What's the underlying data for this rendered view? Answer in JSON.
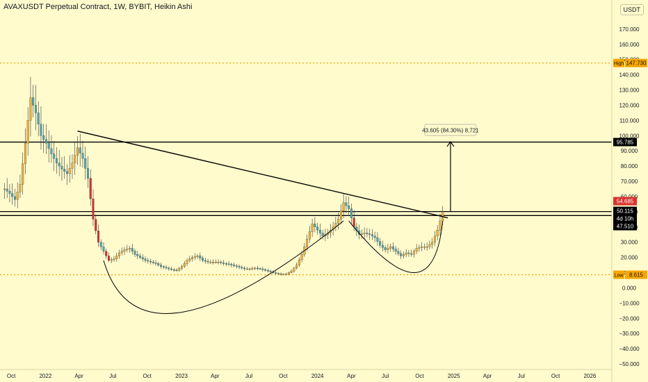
{
  "header": {
    "title": "AVAXUSDT Perpetual Contract, 1W, BYBIT, Heikin Ashi",
    "unit_badge": "USDT"
  },
  "colors": {
    "background": "#fffbcc",
    "up_candle": "#f0b23a",
    "down_candle": "#4fa8b2",
    "bearish_candle": "#d8322e",
    "high_low_line": "#f7a600",
    "level_line": "#000000",
    "axis_text": "#131722"
  },
  "chart_data": {
    "type": "candlestick",
    "symbol": "AVAXUSDT",
    "timeframe": "1W",
    "exchange": "BYBIT",
    "style": "Heikin Ashi",
    "ylim": [
      -50,
      180
    ],
    "xlim": [
      "2021-09-01",
      "2026-03-01"
    ],
    "y_ticks": [
      170,
      160,
      150,
      140,
      130,
      120,
      110,
      100,
      90,
      80,
      70,
      60,
      50,
      40,
      30,
      20,
      10,
      0,
      -10,
      -20,
      -30,
      -40,
      -50
    ],
    "y_tick_labels": [
      "170.000",
      "160.000",
      "150.000",
      "140.000",
      "130.000",
      "120.000",
      "110.000",
      "100.000",
      "90.000",
      "80.000",
      "70.000",
      "60.000",
      "50.000",
      "40.000",
      "30.000",
      "20.000",
      "10.000",
      "0.000",
      "−10.000",
      "−20.000",
      "−30.000",
      "−40.000",
      "−50.000"
    ],
    "x_ticks": [
      {
        "label": "Oct",
        "date": "2021-10-01"
      },
      {
        "label": "2022",
        "date": "2022-01-01"
      },
      {
        "label": "Apr",
        "date": "2022-04-01"
      },
      {
        "label": "Jul",
        "date": "2022-07-01"
      },
      {
        "label": "Oct",
        "date": "2022-10-01"
      },
      {
        "label": "2023",
        "date": "2023-01-01"
      },
      {
        "label": "Apr",
        "date": "2023-04-01"
      },
      {
        "label": "Jul",
        "date": "2023-07-01"
      },
      {
        "label": "Oct",
        "date": "2023-10-01"
      },
      {
        "label": "2024",
        "date": "2024-01-01"
      },
      {
        "label": "Apr",
        "date": "2024-04-01"
      },
      {
        "label": "Jul",
        "date": "2024-07-01"
      },
      {
        "label": "Oct",
        "date": "2024-10-01"
      },
      {
        "label": "2025",
        "date": "2025-01-01"
      },
      {
        "label": "Apr",
        "date": "2025-04-01"
      },
      {
        "label": "Jul",
        "date": "2025-07-01"
      },
      {
        "label": "Oct",
        "date": "2025-10-01"
      },
      {
        "label": "2026",
        "date": "2026-01-01"
      }
    ],
    "price_path": [
      [
        "2021-09-13",
        65
      ],
      [
        "2021-09-27",
        62
      ],
      [
        "2021-10-11",
        58
      ],
      [
        "2021-10-25",
        68
      ],
      [
        "2021-11-08",
        95
      ],
      [
        "2021-11-22",
        125
      ],
      [
        "2021-12-06",
        115
      ],
      [
        "2021-12-20",
        100
      ],
      [
        "2022-01-03",
        95
      ],
      [
        "2022-01-17",
        88
      ],
      [
        "2022-01-31",
        82
      ],
      [
        "2022-02-14",
        78
      ],
      [
        "2022-02-28",
        75
      ],
      [
        "2022-03-14",
        82
      ],
      [
        "2022-03-28",
        92
      ],
      [
        "2022-04-11",
        85
      ],
      [
        "2022-04-25",
        72
      ],
      [
        "2022-05-09",
        45
      ],
      [
        "2022-05-23",
        30
      ],
      [
        "2022-06-06",
        24
      ],
      [
        "2022-06-20",
        18
      ],
      [
        "2022-07-04",
        19
      ],
      [
        "2022-07-18",
        23
      ],
      [
        "2022-08-01",
        25
      ],
      [
        "2022-08-15",
        26
      ],
      [
        "2022-08-29",
        22
      ],
      [
        "2022-09-12",
        20
      ],
      [
        "2022-09-26",
        18
      ],
      [
        "2022-10-10",
        17
      ],
      [
        "2022-10-24",
        16
      ],
      [
        "2022-11-07",
        14
      ],
      [
        "2022-11-21",
        13
      ],
      [
        "2022-12-05",
        12
      ],
      [
        "2022-12-19",
        11.5
      ],
      [
        "2023-01-02",
        14
      ],
      [
        "2023-01-16",
        18
      ],
      [
        "2023-01-30",
        20
      ],
      [
        "2023-02-13",
        21
      ],
      [
        "2023-02-27",
        18
      ],
      [
        "2023-03-13",
        17
      ],
      [
        "2023-03-27",
        17
      ],
      [
        "2023-04-10",
        17
      ],
      [
        "2023-04-24",
        16
      ],
      [
        "2023-05-08",
        15.5
      ],
      [
        "2023-05-22",
        14.5
      ],
      [
        "2023-06-05",
        13.5
      ],
      [
        "2023-06-19",
        12.5
      ],
      [
        "2023-07-03",
        12.5
      ],
      [
        "2023-07-17",
        13
      ],
      [
        "2023-07-31",
        12.5
      ],
      [
        "2023-08-14",
        11.5
      ],
      [
        "2023-08-28",
        10.5
      ],
      [
        "2023-09-11",
        9.5
      ],
      [
        "2023-09-25",
        9
      ],
      [
        "2023-10-09",
        9
      ],
      [
        "2023-10-23",
        11
      ],
      [
        "2023-11-06",
        15
      ],
      [
        "2023-11-20",
        22
      ],
      [
        "2023-12-04",
        32
      ],
      [
        "2023-12-18",
        42
      ],
      [
        "2024-01-01",
        38
      ],
      [
        "2024-01-15",
        34
      ],
      [
        "2024-01-29",
        36
      ],
      [
        "2024-02-12",
        40
      ],
      [
        "2024-02-26",
        45
      ],
      [
        "2024-03-11",
        56
      ],
      [
        "2024-03-25",
        52
      ],
      [
        "2024-04-08",
        40
      ],
      [
        "2024-04-22",
        35
      ],
      [
        "2024-05-06",
        36
      ],
      [
        "2024-05-20",
        35
      ],
      [
        "2024-06-03",
        33
      ],
      [
        "2024-06-17",
        28
      ],
      [
        "2024-07-01",
        25
      ],
      [
        "2024-07-15",
        27
      ],
      [
        "2024-07-29",
        24
      ],
      [
        "2024-08-12",
        21
      ],
      [
        "2024-08-26",
        23
      ],
      [
        "2024-09-09",
        22
      ],
      [
        "2024-09-23",
        26
      ],
      [
        "2024-10-07",
        27
      ],
      [
        "2024-10-21",
        27
      ],
      [
        "2024-11-04",
        30
      ],
      [
        "2024-11-18",
        38
      ],
      [
        "2024-11-25",
        44
      ],
      [
        "2024-12-02",
        50
      ]
    ],
    "horizontal_levels": [
      {
        "value": 95.785,
        "label": "95.785"
      },
      {
        "value": 50.115,
        "label": "50.115"
      },
      {
        "value": 47.51,
        "label": "47.510"
      }
    ],
    "high": {
      "label": "High",
      "value": 147.73,
      "value_label": "147.730"
    },
    "low": {
      "label": "Low",
      "value": 8.615,
      "value_label": "8.615"
    },
    "price_markers": [
      {
        "value": 54.685,
        "label": "54.685",
        "color": "#d8322e"
      },
      {
        "value": 50.115,
        "label": "50.115",
        "color": "#000000"
      },
      {
        "value": 47.51,
        "label": "47.510",
        "color": "#000000"
      }
    ],
    "countdown_label": "4d 10h",
    "trendline": {
      "from": [
        "2022-03-28",
        103
      ],
      "to": [
        "2024-12-16",
        46
      ]
    },
    "cup_curves": [
      {
        "from": [
          "2022-06-06",
          18
        ],
        "bottom": [
          "2023-01-02",
          -16
        ],
        "to": [
          "2024-03-11",
          44
        ]
      },
      {
        "from": [
          "2024-03-25",
          44
        ],
        "bottom": [
          "2024-09-16",
          10
        ],
        "to": [
          "2024-12-02",
          44
        ]
      }
    ],
    "projection": {
      "x": "2024-12-23",
      "from": 50,
      "to": 96,
      "label": "43.605 (84.30%) 8,721"
    }
  }
}
